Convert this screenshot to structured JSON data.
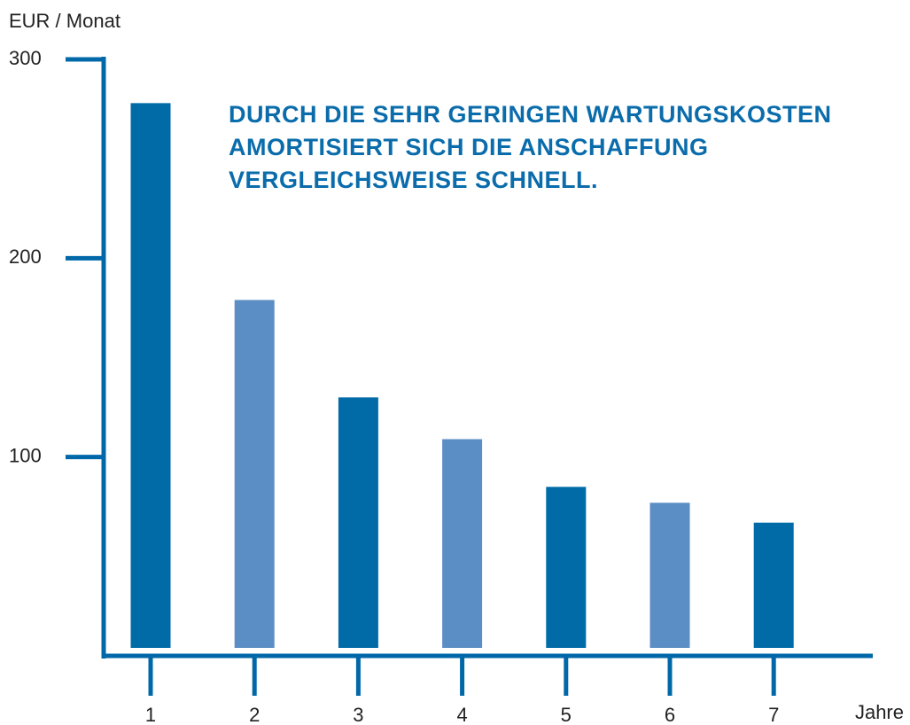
{
  "chart_data": {
    "type": "bar",
    "y_label": "EUR / Monat",
    "x_label": "Jahre",
    "annotation": [
      "DURCH DIE SEHR GERINGEN WARTUNGSKOSTEN",
      "AMORTISIERT SICH DIE ANSCHAFFUNG",
      "VERGLEICHSWEISE SCHNELL."
    ],
    "categories": [
      "1",
      "2",
      "3",
      "4",
      "5",
      "6",
      "7"
    ],
    "values": [
      278,
      179,
      130,
      109,
      85,
      77,
      67
    ],
    "colors": [
      "#006ba6",
      "#5b8ec4",
      "#006ba6",
      "#5b8ec4",
      "#006ba6",
      "#5b8ec4",
      "#006ba6"
    ],
    "axis_color": "#0068a8",
    "ylim": [
      0,
      300
    ],
    "yticks": [
      100,
      200,
      300
    ],
    "grid": false
  }
}
